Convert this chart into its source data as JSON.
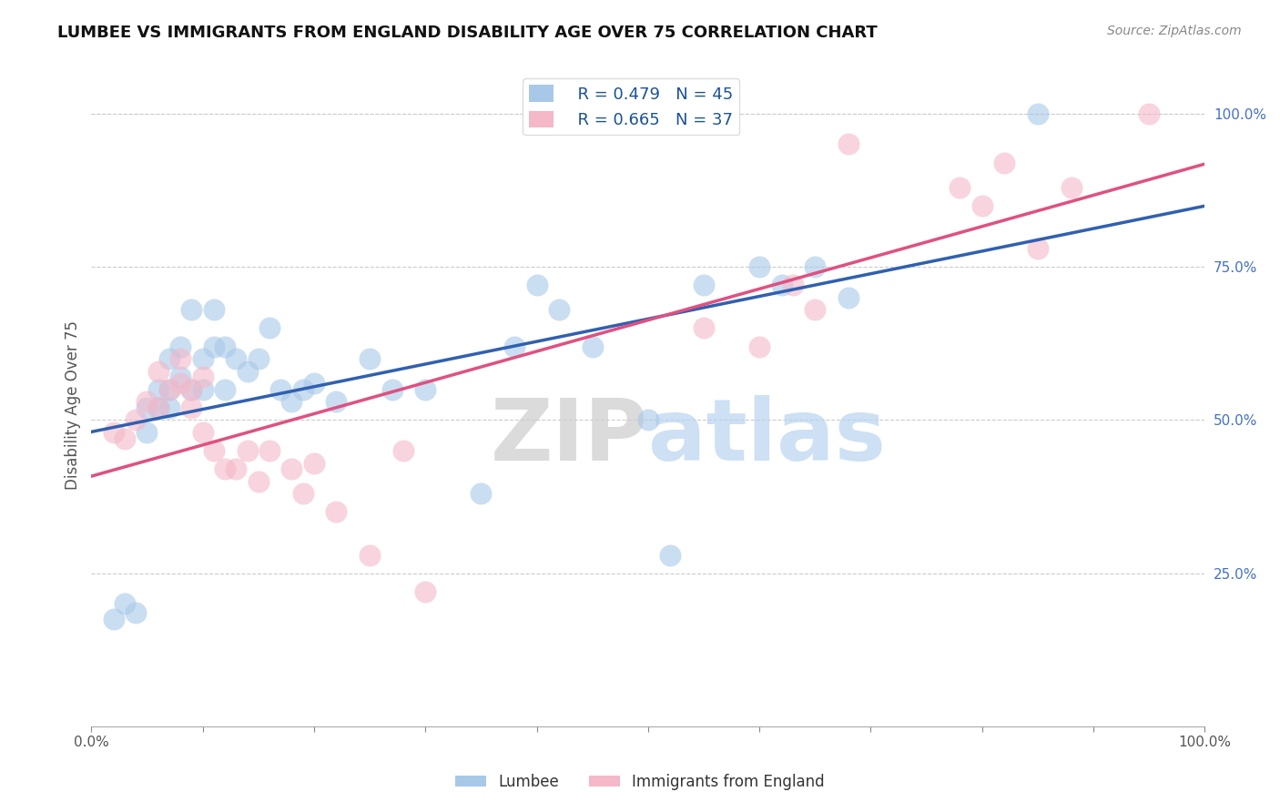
{
  "title": "LUMBEE VS IMMIGRANTS FROM ENGLAND DISABILITY AGE OVER 75 CORRELATION CHART",
  "source": "Source: ZipAtlas.com",
  "ylabel": "Disability Age Over 75",
  "legend_label1": "Lumbee",
  "legend_label2": "Immigrants from England",
  "R1": 0.479,
  "N1": 45,
  "R2": 0.665,
  "N2": 37,
  "color_blue": "#a8c8e8",
  "color_pink": "#f4b8c8",
  "line_color_blue": "#3060b0",
  "line_color_pink": "#e05080",
  "watermark_zip": "ZIP",
  "watermark_atlas": "atlas",
  "lumbee_x": [
    0.02,
    0.03,
    0.04,
    0.05,
    0.05,
    0.06,
    0.06,
    0.07,
    0.07,
    0.07,
    0.08,
    0.08,
    0.09,
    0.09,
    0.1,
    0.1,
    0.11,
    0.11,
    0.12,
    0.12,
    0.13,
    0.14,
    0.15,
    0.16,
    0.17,
    0.18,
    0.19,
    0.2,
    0.22,
    0.25,
    0.27,
    0.3,
    0.35,
    0.38,
    0.4,
    0.42,
    0.45,
    0.5,
    0.52,
    0.55,
    0.6,
    0.62,
    0.65,
    0.68,
    0.85
  ],
  "lumbee_y": [
    0.175,
    0.2,
    0.185,
    0.48,
    0.52,
    0.55,
    0.52,
    0.52,
    0.55,
    0.6,
    0.57,
    0.62,
    0.55,
    0.68,
    0.6,
    0.55,
    0.62,
    0.68,
    0.55,
    0.62,
    0.6,
    0.58,
    0.6,
    0.65,
    0.55,
    0.53,
    0.55,
    0.56,
    0.53,
    0.6,
    0.55,
    0.55,
    0.38,
    0.62,
    0.72,
    0.68,
    0.62,
    0.5,
    0.28,
    0.72,
    0.75,
    0.72,
    0.75,
    0.7,
    1.0
  ],
  "england_x": [
    0.02,
    0.03,
    0.04,
    0.05,
    0.06,
    0.06,
    0.07,
    0.08,
    0.08,
    0.09,
    0.09,
    0.1,
    0.1,
    0.11,
    0.12,
    0.13,
    0.14,
    0.15,
    0.16,
    0.18,
    0.19,
    0.2,
    0.22,
    0.25,
    0.28,
    0.3,
    0.55,
    0.6,
    0.63,
    0.65,
    0.68,
    0.78,
    0.8,
    0.82,
    0.85,
    0.88,
    0.95
  ],
  "england_y": [
    0.48,
    0.47,
    0.5,
    0.53,
    0.52,
    0.58,
    0.55,
    0.56,
    0.6,
    0.55,
    0.52,
    0.57,
    0.48,
    0.45,
    0.42,
    0.42,
    0.45,
    0.4,
    0.45,
    0.42,
    0.38,
    0.43,
    0.35,
    0.28,
    0.45,
    0.22,
    0.65,
    0.62,
    0.72,
    0.68,
    0.95,
    0.88,
    0.85,
    0.92,
    0.78,
    0.88,
    1.0
  ],
  "xlim": [
    0.0,
    1.0
  ],
  "ylim": [
    0.0,
    1.05
  ],
  "xticks": [
    0.0,
    0.1,
    0.2,
    0.3,
    0.4,
    0.5,
    0.6,
    0.7,
    0.8,
    0.9,
    1.0
  ],
  "right_ytick_vals": [
    0.25,
    0.5,
    0.75,
    1.0
  ],
  "right_ytick_labels": [
    "25.0%",
    "50.0%",
    "75.0%",
    "100.0%"
  ]
}
